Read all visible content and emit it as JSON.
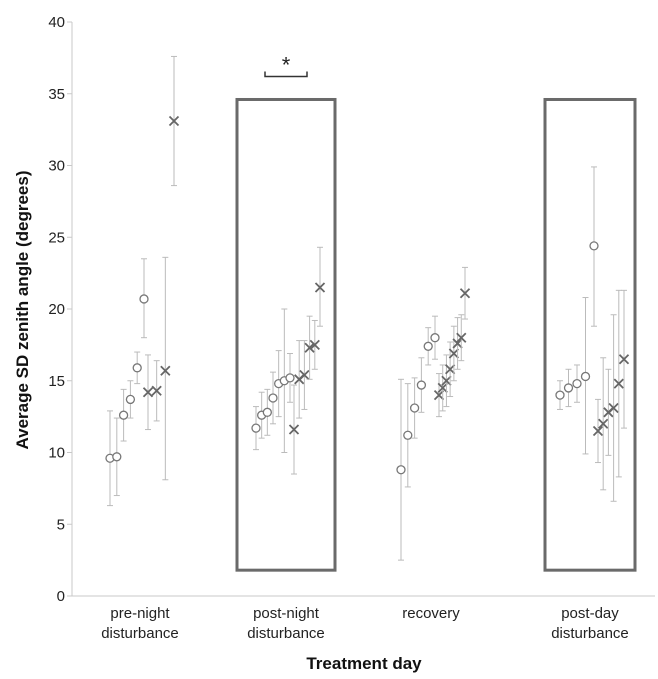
{
  "chart_data": {
    "type": "scatter",
    "title": "",
    "xlabel": "Treatment day",
    "ylabel": "Average SD zenith angle (degrees)",
    "ylim": [
      0,
      40
    ],
    "yticks": [
      0,
      5,
      10,
      15,
      20,
      25,
      30,
      35,
      40
    ],
    "grid": false,
    "categories": [
      {
        "line1": "pre-night",
        "line2": "disturbance"
      },
      {
        "line1": "post-night",
        "line2": "disturbance"
      },
      {
        "line1": "recovery",
        "line2": ""
      },
      {
        "line1": "post-day",
        "line2": "disturbance"
      }
    ],
    "highlighted_categories": [
      1,
      3
    ],
    "highlight_box_range": [
      1.8,
      34.6
    ],
    "significance": {
      "label": "*",
      "category": 1,
      "y": 36.2
    },
    "series": [
      {
        "marker": "circle",
        "groups": [
          [
            {
              "y": 9.6,
              "lo": 6.3,
              "hi": 12.9
            },
            {
              "y": 9.7,
              "lo": 7.0,
              "hi": 12.4
            },
            {
              "y": 12.6,
              "lo": 10.8,
              "hi": 14.4
            },
            {
              "y": 13.7,
              "lo": 12.4,
              "hi": 15.0
            },
            {
              "y": 15.9,
              "lo": 14.8,
              "hi": 17.0
            },
            {
              "y": 20.7,
              "lo": 18.0,
              "hi": 23.5
            }
          ],
          [
            {
              "y": 11.7,
              "lo": 10.2,
              "hi": 13.2
            },
            {
              "y": 12.6,
              "lo": 11.0,
              "hi": 14.2
            },
            {
              "y": 12.8,
              "lo": 11.2,
              "hi": 14.4
            },
            {
              "y": 13.8,
              "lo": 12.0,
              "hi": 15.6
            },
            {
              "y": 14.8,
              "lo": 12.5,
              "hi": 17.1
            },
            {
              "y": 15.0,
              "lo": 10.0,
              "hi": 20.0
            },
            {
              "y": 15.2,
              "lo": 13.5,
              "hi": 16.9
            }
          ],
          [
            {
              "y": 8.8,
              "lo": 2.5,
              "hi": 15.1
            },
            {
              "y": 11.2,
              "lo": 7.6,
              "hi": 14.8
            },
            {
              "y": 13.1,
              "lo": 11.0,
              "hi": 15.2
            },
            {
              "y": 14.7,
              "lo": 12.8,
              "hi": 16.6
            },
            {
              "y": 17.4,
              "lo": 16.1,
              "hi": 18.7
            },
            {
              "y": 18.0,
              "lo": 16.5,
              "hi": 19.5
            }
          ],
          [
            {
              "y": 14.0,
              "lo": 13.0,
              "hi": 15.0
            },
            {
              "y": 14.5,
              "lo": 13.2,
              "hi": 15.8
            },
            {
              "y": 14.8,
              "lo": 13.5,
              "hi": 16.1
            },
            {
              "y": 15.3,
              "lo": 9.9,
              "hi": 20.8
            },
            {
              "y": 24.4,
              "lo": 18.8,
              "hi": 29.9
            }
          ]
        ]
      },
      {
        "marker": "cross",
        "groups": [
          [
            {
              "y": 14.2,
              "lo": 11.6,
              "hi": 16.8
            },
            {
              "y": 14.3,
              "lo": 12.2,
              "hi": 16.4
            },
            {
              "y": 15.7,
              "lo": 8.1,
              "hi": 23.6
            },
            {
              "y": 33.1,
              "lo": 28.6,
              "hi": 37.6
            }
          ],
          [
            {
              "y": 11.6,
              "lo": 8.5,
              "hi": 14.7
            },
            {
              "y": 15.1,
              "lo": 12.4,
              "hi": 17.8
            },
            {
              "y": 15.4,
              "lo": 13.0,
              "hi": 17.8
            },
            {
              "y": 17.3,
              "lo": 15.1,
              "hi": 19.5
            },
            {
              "y": 17.5,
              "lo": 15.8,
              "hi": 19.2
            },
            {
              "y": 21.5,
              "lo": 18.8,
              "hi": 24.3
            }
          ],
          [
            {
              "y": 14.0,
              "lo": 12.5,
              "hi": 15.5
            },
            {
              "y": 14.5,
              "lo": 12.9,
              "hi": 16.1
            },
            {
              "y": 15.0,
              "lo": 13.2,
              "hi": 16.8
            },
            {
              "y": 15.8,
              "lo": 13.9,
              "hi": 17.7
            },
            {
              "y": 16.9,
              "lo": 15.0,
              "hi": 18.8
            },
            {
              "y": 17.6,
              "lo": 15.8,
              "hi": 19.4
            },
            {
              "y": 18.0,
              "lo": 16.4,
              "hi": 19.6
            },
            {
              "y": 21.1,
              "lo": 19.3,
              "hi": 22.9
            }
          ],
          [
            {
              "y": 11.5,
              "lo": 9.3,
              "hi": 13.7
            },
            {
              "y": 12.0,
              "lo": 7.4,
              "hi": 16.6
            },
            {
              "y": 12.8,
              "lo": 9.8,
              "hi": 15.8
            },
            {
              "y": 13.1,
              "lo": 6.6,
              "hi": 19.6
            },
            {
              "y": 14.8,
              "lo": 8.3,
              "hi": 21.3
            },
            {
              "y": 16.5,
              "lo": 11.7,
              "hi": 21.3
            }
          ]
        ]
      }
    ]
  },
  "colors": {
    "marker": "#777777",
    "errorbar": "#bbbbbb",
    "axis": "#c8c8c8",
    "box": "#6a6a6a",
    "text": "#222222"
  }
}
